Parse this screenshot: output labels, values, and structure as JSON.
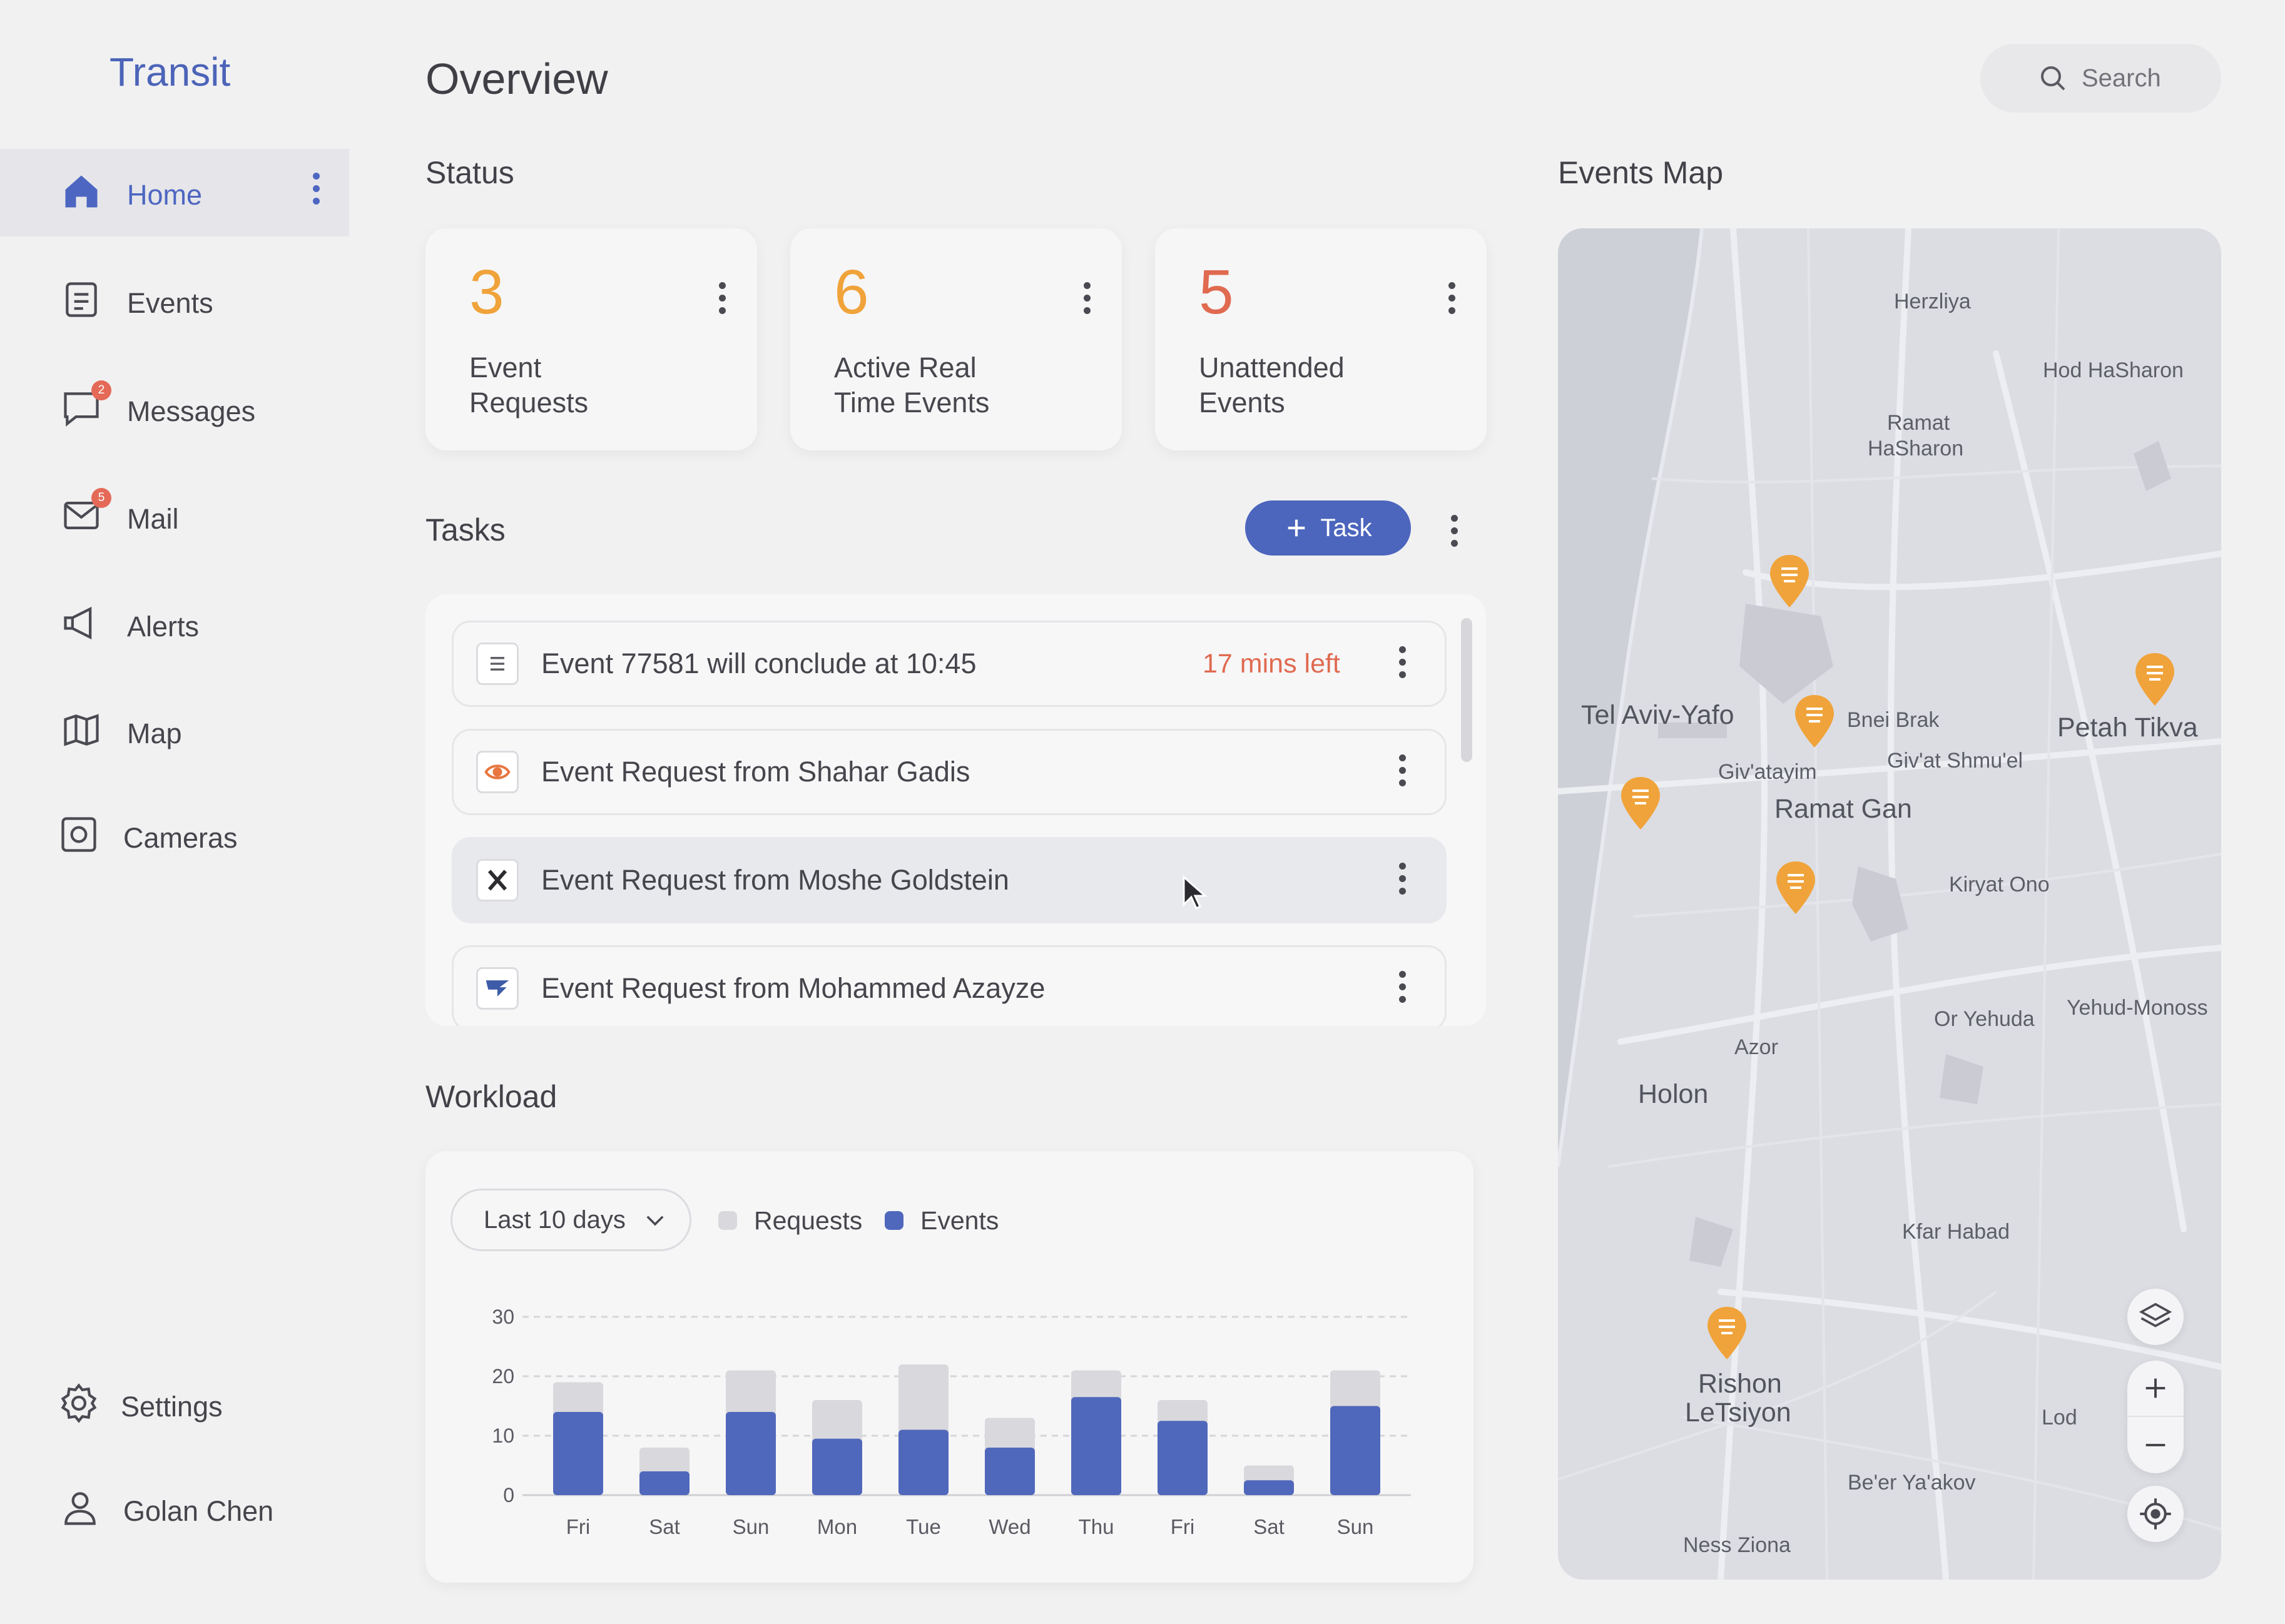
{
  "app": {
    "brand": "Transit"
  },
  "header": {
    "title": "Overview",
    "search_placeholder": "Search"
  },
  "sidebar": {
    "items": [
      {
        "label": "Home",
        "icon": "home-icon",
        "active": true
      },
      {
        "label": "Events",
        "icon": "document-icon"
      },
      {
        "label": "Messages",
        "icon": "chat-icon",
        "badge": "2"
      },
      {
        "label": "Mail",
        "icon": "mail-icon",
        "badge": "5"
      },
      {
        "label": "Alerts",
        "icon": "megaphone-icon"
      },
      {
        "label": "Map",
        "icon": "map-icon"
      },
      {
        "label": "Cameras",
        "icon": "camera-icon"
      }
    ],
    "settings_label": "Settings",
    "user_name": "Golan Chen"
  },
  "status": {
    "title": "Status",
    "cards": [
      {
        "value": "3",
        "label_line1": "Event",
        "label_line2": "Requests",
        "color": "#f0a33a"
      },
      {
        "value": "6",
        "label_line1": "Active Real",
        "label_line2": "Time Events",
        "color": "#f0a33a"
      },
      {
        "value": "5",
        "label_line1": "Unattended",
        "label_line2": "Events",
        "color": "#e06a50"
      }
    ]
  },
  "tasks": {
    "title": "Tasks",
    "add_label": "Task",
    "items": [
      {
        "text": "Event 77581 will conclude at 10:45",
        "time_left": "17 mins left",
        "icon": "list-icon"
      },
      {
        "text": "Event Request from Shahar Gadis",
        "icon": "eye-icon"
      },
      {
        "text": "Event Request from Moshe Goldstein",
        "icon": "x-logo-icon"
      },
      {
        "text": "Event Request from Mohammed Azayze",
        "icon": "airline-icon"
      }
    ]
  },
  "workload": {
    "title": "Workload",
    "range_label": "Last 10 days",
    "legend_requests": "Requests",
    "legend_events": "Events"
  },
  "chart_data": {
    "type": "bar",
    "categories": [
      "Fri",
      "Sat",
      "Sun",
      "Mon",
      "Tue",
      "Wed",
      "Thu",
      "Fri",
      "Sat",
      "Sun"
    ],
    "series": [
      {
        "name": "Requests",
        "values": [
          19,
          8,
          21,
          16,
          22,
          13,
          21,
          16,
          5,
          21
        ],
        "color": "#d9d9dd"
      },
      {
        "name": "Events",
        "values": [
          14,
          4,
          14,
          9.5,
          11,
          8,
          16.5,
          12.5,
          2.5,
          15
        ],
        "color": "#5068bb"
      }
    ],
    "yticks": [
      0,
      10,
      20,
      30
    ],
    "ylim": [
      0,
      30
    ],
    "grid": true,
    "stacked": false
  },
  "map": {
    "title": "Events Map",
    "labels": [
      {
        "text": "Herzliya",
        "big": false
      },
      {
        "text": "Hod HaSharon",
        "big": false
      },
      {
        "text": "Ramat",
        "big": false
      },
      {
        "text": "HaSharon",
        "big": false
      },
      {
        "text": "Tel Aviv-Yafo",
        "big": true
      },
      {
        "text": "Bnei Brak",
        "big": false
      },
      {
        "text": "Petah Tikva",
        "big": true
      },
      {
        "text": "Giv'atayim",
        "big": false
      },
      {
        "text": "Giv'at Shmu'el",
        "big": false
      },
      {
        "text": "Ramat Gan",
        "big": true
      },
      {
        "text": "Kiryat Ono",
        "big": false
      },
      {
        "text": "Or Yehuda",
        "big": false
      },
      {
        "text": "Yehud-Monoss",
        "big": false
      },
      {
        "text": "Azor",
        "big": false
      },
      {
        "text": "Holon",
        "big": true
      },
      {
        "text": "Kfar Habad",
        "big": false
      },
      {
        "text": "Rishon",
        "big": true
      },
      {
        "text": "LeTsiyon",
        "big": true
      },
      {
        "text": "Lod",
        "big": false
      },
      {
        "text": "Be'er Ya'akov",
        "big": false
      },
      {
        "text": "Ness Ziona",
        "big": false
      }
    ]
  }
}
